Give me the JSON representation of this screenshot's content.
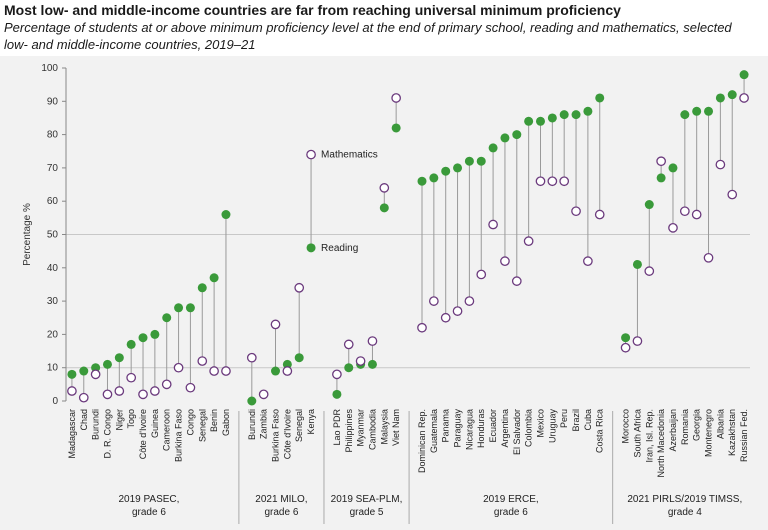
{
  "title": "Most low- and middle-income countries are far from reaching universal minimum proficiency",
  "subtitle": "Percentage of students at or above minimum proficiency level at the end of primary school, reading and mathematics, selected low- and middle-income countries, 2019–21",
  "colors": {
    "reading": "#3a9a3a",
    "mathematics": "#6b3a7d",
    "stem": "#9a9a9a"
  },
  "chart_data": {
    "type": "dot",
    "ylabel": "Percentage %",
    "ylim": [
      0,
      100
    ],
    "yticks": [
      0,
      10,
      20,
      30,
      40,
      50,
      60,
      70,
      80,
      90,
      100
    ],
    "legend": [
      "Mathematics",
      "Reading"
    ],
    "groups": [
      {
        "label_line1": "2019 PASEC,",
        "label_line2": "grade 6",
        "countries": [
          "Madagascar",
          "Chad",
          "Burundi",
          "D. R. Congo",
          "Niger",
          "Togo",
          "Côte d'Ivoire",
          "Guinea",
          "Cameroon",
          "Burkina Faso",
          "Congo",
          "Senegal",
          "Benin",
          "Gabon"
        ],
        "reading": [
          8,
          9,
          10,
          11,
          13,
          17,
          19,
          20,
          25,
          28,
          28,
          34,
          37,
          56
        ],
        "mathematics": [
          3,
          1,
          8,
          2,
          3,
          7,
          2,
          3,
          5,
          10,
          4,
          12,
          9,
          9
        ]
      },
      {
        "label_line1": "2021 MILO,",
        "label_line2": "grade 6",
        "countries": [
          "Burundi",
          "Zambia",
          "Burkina Faso",
          "Côte d'Ivoire",
          "Senegal",
          "Kenya"
        ],
        "reading": [
          0,
          2,
          9,
          11,
          13,
          null
        ],
        "mathematics": [
          13,
          2,
          23,
          9,
          34,
          null
        ]
      },
      {
        "label_line1": "2019 SEA-PLM,",
        "label_line2": "grade 5",
        "countries": [
          "Lao PDR",
          "Philippines",
          "Myanmar",
          "Cambodia",
          "Malaysia",
          "Viet Nam"
        ],
        "reading": [
          2,
          10,
          11,
          11,
          58,
          82
        ],
        "mathematics": [
          8,
          17,
          12,
          18,
          64,
          91
        ]
      },
      {
        "label_line1": "2019 ERCE,",
        "label_line2": "grade 6",
        "countries": [
          "Dominican Rep.",
          "Guatemala",
          "Panama",
          "Paraguay",
          "Nicaragua",
          "Honduras",
          "Ecuador",
          "Argentina",
          "El Salvador",
          "Colombia",
          "Mexico",
          "Uruguay",
          "Peru",
          "Brazil",
          "Cuba",
          "Costa Rica"
        ],
        "reading": [
          66,
          67,
          69,
          70,
          72,
          72,
          76,
          79,
          80,
          84,
          84,
          85,
          86,
          86,
          87,
          91
        ],
        "mathematics": [
          22,
          30,
          25,
          27,
          30,
          38,
          53,
          42,
          36,
          48,
          66,
          66,
          66,
          57,
          42,
          56
        ]
      },
      {
        "label_line1": "2021 PIRLS/2019 TIMSS,",
        "label_line2": "grade 4",
        "countries": [
          "Morocco",
          "South Africa",
          "Iran, Isl. Rep.",
          "North Macedonia",
          "Azerbaijan",
          "Romania",
          "Georgia",
          "Montenegro",
          "Albania",
          "Kazakhstan",
          "Russian Fed."
        ],
        "reading": [
          19,
          41,
          59,
          67,
          70,
          86,
          87,
          87,
          91,
          92,
          98
        ],
        "mathematics": [
          16,
          18,
          39,
          72,
          52,
          57,
          56,
          43,
          71,
          62,
          91
        ]
      }
    ],
    "annotations": {
      "mathematics": "Mathematics",
      "reading": "Reading"
    }
  }
}
